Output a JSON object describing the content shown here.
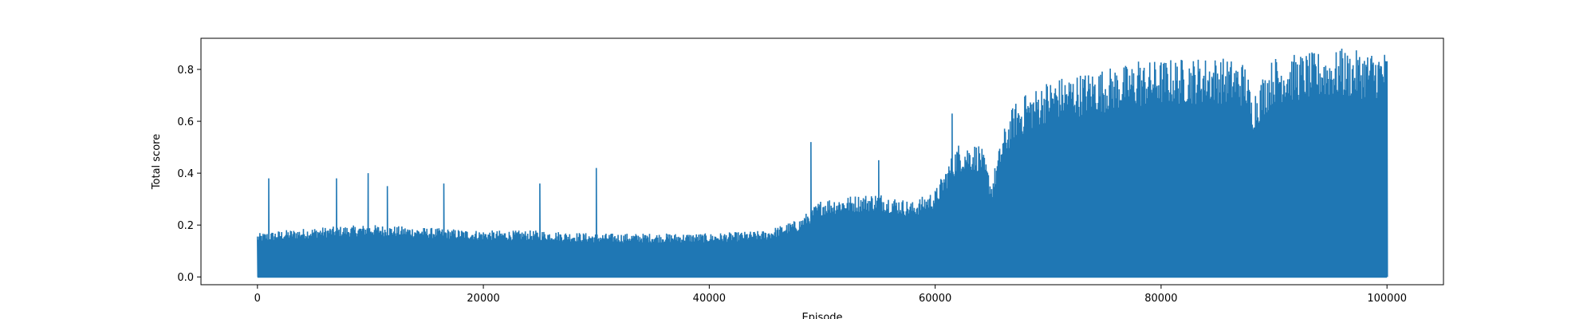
{
  "chart_data": {
    "type": "line",
    "title": "",
    "xlabel": "Episode",
    "ylabel": "Total score",
    "xlim": [
      -5000,
      105000
    ],
    "ylim": [
      -0.03,
      0.92
    ],
    "xticks": [
      0,
      20000,
      40000,
      60000,
      80000,
      100000
    ],
    "xtick_labels": [
      "0",
      "20000",
      "40000",
      "60000",
      "80000",
      "100000"
    ],
    "yticks": [
      0.0,
      0.2,
      0.4,
      0.6,
      0.8
    ],
    "ytick_labels": [
      "0.0",
      "0.2",
      "0.4",
      "0.6",
      "0.8"
    ],
    "grid": false,
    "series_color": "#1f77b4",
    "series": [
      {
        "style": "dense per-episode scores oscillating between 0 and an upper envelope",
        "envelope": {
          "x": [
            0,
            2000,
            5000,
            10000,
            15000,
            20000,
            25000,
            30000,
            35000,
            40000,
            45000,
            48000,
            50000,
            55000,
            58000,
            60000,
            62000,
            64000,
            65000,
            66000,
            67000,
            70000,
            75000,
            80000,
            85000,
            87500,
            88000,
            90000,
            95000,
            100000
          ],
          "y": [
            0.15,
            0.16,
            0.17,
            0.18,
            0.17,
            0.16,
            0.16,
            0.15,
            0.15,
            0.15,
            0.16,
            0.2,
            0.27,
            0.29,
            0.26,
            0.3,
            0.46,
            0.46,
            0.33,
            0.5,
            0.6,
            0.68,
            0.72,
            0.75,
            0.76,
            0.74,
            0.63,
            0.76,
            0.78,
            0.78
          ]
        },
        "peaks": [
          {
            "x": 1000,
            "y": 0.38
          },
          {
            "x": 7000,
            "y": 0.38
          },
          {
            "x": 9800,
            "y": 0.4
          },
          {
            "x": 11500,
            "y": 0.35
          },
          {
            "x": 16500,
            "y": 0.36
          },
          {
            "x": 25000,
            "y": 0.36
          },
          {
            "x": 30000,
            "y": 0.42
          },
          {
            "x": 49000,
            "y": 0.52
          },
          {
            "x": 55000,
            "y": 0.45
          },
          {
            "x": 61500,
            "y": 0.63
          },
          {
            "x": 68000,
            "y": 0.7
          },
          {
            "x": 78000,
            "y": 0.83
          },
          {
            "x": 96000,
            "y": 0.88
          }
        ]
      }
    ]
  }
}
